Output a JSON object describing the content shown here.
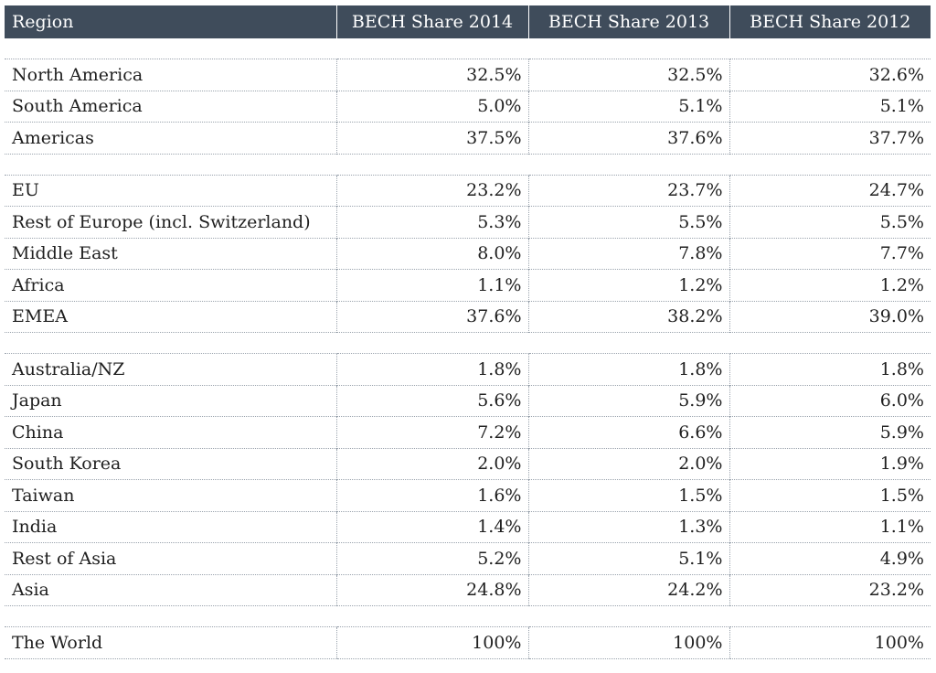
{
  "table": {
    "headers": [
      "Region",
      "BECH Share 2014",
      "BECH Share 2013",
      "BECH Share 2012"
    ],
    "groups": [
      [
        [
          "North America",
          "32.5%",
          "32.5%",
          "32.6%"
        ],
        [
          "South America",
          "5.0%",
          "5.1%",
          "5.1%"
        ],
        [
          "Americas",
          "37.5%",
          "37.6%",
          "37.7%"
        ]
      ],
      [
        [
          "EU",
          "23.2%",
          "23.7%",
          "24.7%"
        ],
        [
          "Rest of Europe (incl. Switzerland)",
          "5.3%",
          "5.5%",
          "5.5%"
        ],
        [
          "Middle East",
          "8.0%",
          "7.8%",
          "7.7%"
        ],
        [
          "Africa",
          "1.1%",
          "1.2%",
          "1.2%"
        ],
        [
          "EMEA",
          "37.6%",
          "38.2%",
          "39.0%"
        ]
      ],
      [
        [
          "Australia/NZ",
          "1.8%",
          "1.8%",
          "1.8%"
        ],
        [
          "Japan",
          "5.6%",
          "5.9%",
          "6.0%"
        ],
        [
          "China",
          "7.2%",
          "6.6%",
          "5.9%"
        ],
        [
          "South Korea",
          "2.0%",
          "2.0%",
          "1.9%"
        ],
        [
          "Taiwan",
          "1.6%",
          "1.5%",
          "1.5%"
        ],
        [
          "India",
          "1.4%",
          "1.3%",
          "1.1%"
        ],
        [
          "Rest of Asia",
          "5.2%",
          "5.1%",
          "4.9%"
        ],
        [
          "Asia",
          "24.8%",
          "24.2%",
          "23.2%"
        ]
      ],
      [
        [
          "The World",
          "100%",
          "100%",
          "100%"
        ]
      ]
    ]
  }
}
